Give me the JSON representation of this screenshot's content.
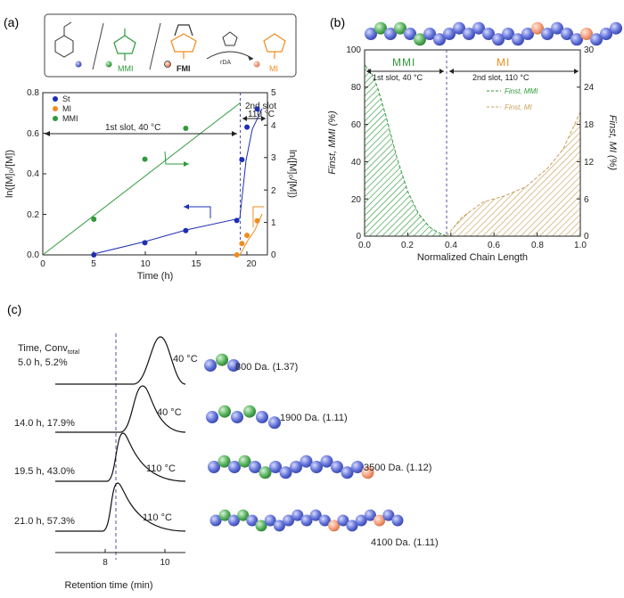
{
  "colors": {
    "blue": "#1f2fb3",
    "orange": "#f08c1e",
    "green": "#2f9a3a",
    "bead_blue": "#5566cc",
    "bead_green": "#4aaa55",
    "bead_orange": "#f39a78",
    "dash": "#5050a0"
  },
  "panel_a": {
    "label": "(a)",
    "scheme": {
      "mmi_label": "MMI",
      "fmi_label": "FMI",
      "mi_label": "MI",
      "rda_label": "rDA"
    },
    "legend": [
      "St",
      "MI",
      "MMI"
    ],
    "slot1": "1st slot, 40 °C",
    "slot2_line1": "2nd slot",
    "slot2_line2": "110 °C",
    "xlabel": "Time (h)",
    "ylabel_left": "ln([M]₀/[M])",
    "ylabel_right": "ln([M]₀/[M])",
    "x_ticks": [
      "0",
      "5",
      "10",
      "15",
      "20"
    ],
    "yl_ticks": [
      "0.0",
      "0.2",
      "0.4",
      "0.6",
      "0.8"
    ],
    "yr_ticks": [
      "0",
      "1",
      "2",
      "3",
      "4",
      "5"
    ]
  },
  "panel_b": {
    "label": "(b)",
    "mmi_title": "MMI",
    "mi_title": "MI",
    "slot1": "1st slot, 40 °C",
    "slot2": "2nd slot, 110 °C",
    "legend": [
      "Finst, MMI",
      "Finst, MI"
    ],
    "xlabel": "Normalized Chain Length",
    "ylabel_left": "Finst, MMI (%)",
    "ylabel_right": "Finst, MI (%)",
    "x_ticks": [
      "0.0",
      "0.2",
      "0.4",
      "0.6",
      "0.8",
      "1.0"
    ],
    "yl_ticks": [
      "0",
      "20",
      "40",
      "60",
      "80",
      "100"
    ],
    "yr_ticks": [
      "0",
      "6",
      "12",
      "18",
      "24",
      "30"
    ]
  },
  "panel_c": {
    "label": "(c)",
    "header": "Time, Conv",
    "header_sub": "total",
    "xlabel": "Retention time (min)",
    "x_ticks": [
      "8",
      "10"
    ],
    "traces": [
      {
        "time": "5.0 h, 5.2%",
        "temp": "40 °C",
        "mw": "800 Da. (1.37)"
      },
      {
        "time": "14.0 h, 17.9%",
        "temp": "40 °C",
        "mw": "1900 Da. (1.11)"
      },
      {
        "time": "19.5 h, 43.0%",
        "temp": "110 °C",
        "mw": "3500 Da. (1.12)"
      },
      {
        "time": "21.0 h, 57.3%",
        "temp": "110 °C",
        "mw": "4100 Da. (1.11)"
      }
    ]
  },
  "chart_data": [
    {
      "type": "scatter",
      "panel": "a",
      "xlabel": "Time (h)",
      "ylabel": "ln([M]0/[M])",
      "xlim": [
        0,
        22
      ],
      "ylim": [
        0,
        0.8
      ],
      "y2lim": [
        0,
        5
      ],
      "legend_position": "top-left",
      "series": [
        {
          "name": "St",
          "axis": "left",
          "x": [
            5,
            10,
            14,
            19,
            19.5,
            20,
            21
          ],
          "y": [
            0.0,
            0.06,
            0.12,
            0.17,
            0.47,
            0.63,
            0.72
          ]
        },
        {
          "name": "MI",
          "axis": "right",
          "x": [
            19,
            19.5,
            20,
            21
          ],
          "y": [
            0.0,
            0.35,
            0.6,
            1.05
          ]
        },
        {
          "name": "MMI",
          "axis": "right",
          "x": [
            5,
            10,
            14
          ],
          "y": [
            1.1,
            2.95,
            3.9
          ]
        }
      ]
    },
    {
      "type": "area",
      "panel": "b",
      "xlabel": "Normalized Chain Length",
      "ylabel": "Finst, MMI (%)",
      "y2label": "Finst, MI (%)",
      "xlim": [
        0,
        1
      ],
      "ylim": [
        0,
        100
      ],
      "y2lim": [
        0,
        30
      ],
      "divider_x": 0.38,
      "series": [
        {
          "name": "Finst, MMI",
          "axis": "left",
          "x": [
            0,
            0.03,
            0.06,
            0.1,
            0.15,
            0.2,
            0.25,
            0.3,
            0.34,
            0.38
          ],
          "y": [
            92,
            88,
            80,
            64,
            42,
            24,
            12,
            5,
            2,
            0
          ]
        },
        {
          "name": "Finst, MI",
          "axis": "right",
          "x": [
            0.38,
            0.45,
            0.55,
            0.65,
            0.75,
            0.85,
            0.92,
            1.0
          ],
          "y": [
            0,
            3,
            5.5,
            6.5,
            8,
            11,
            14,
            20
          ]
        }
      ]
    }
  ]
}
